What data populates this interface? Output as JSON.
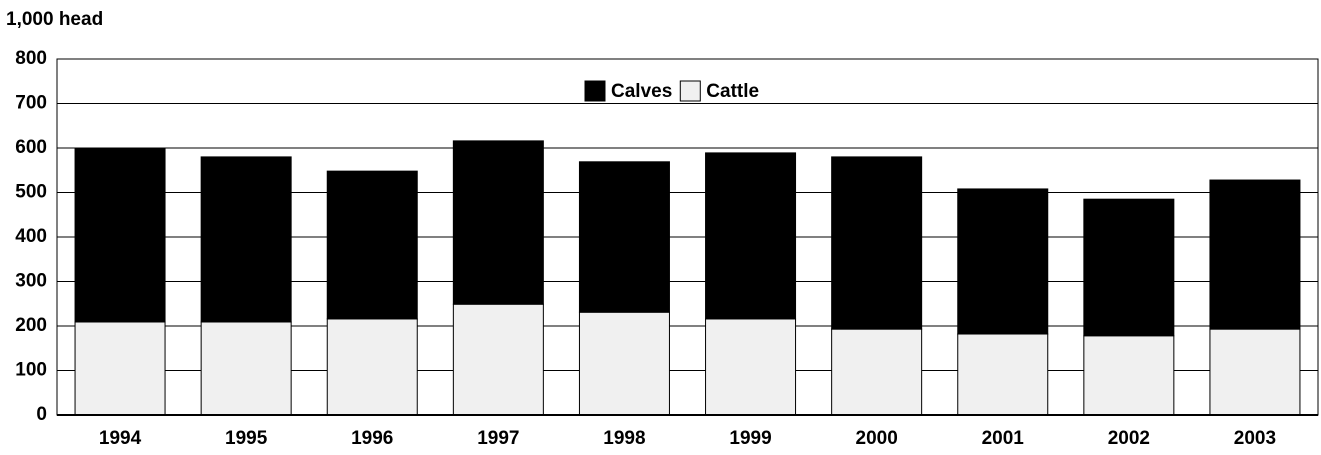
{
  "chart_data": {
    "type": "bar",
    "stacked": true,
    "y_label": "1,000 head",
    "categories": [
      "1994",
      "1995",
      "1996",
      "1997",
      "1998",
      "1999",
      "2000",
      "2001",
      "2002",
      "2003"
    ],
    "series": [
      {
        "name": "Calves",
        "color": "#000000",
        "values": [
          391,
          371,
          332,
          367,
          338,
          373,
          387,
          326,
          307,
          335
        ]
      },
      {
        "name": "Cattle",
        "color": "#f0f0f0",
        "values": [
          209,
          209,
          216,
          249,
          231,
          216,
          193,
          182,
          178,
          193
        ]
      }
    ],
    "ylim": [
      0,
      800
    ],
    "yticks": [
      0,
      100,
      200,
      300,
      400,
      500,
      600,
      700,
      800
    ],
    "grid": true,
    "legend": "top"
  }
}
